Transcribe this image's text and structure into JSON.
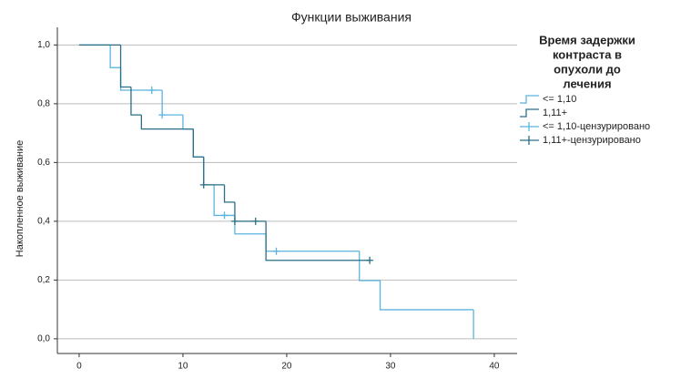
{
  "chart_data": {
    "type": "step",
    "title": "Функции выживания",
    "ylabel": "Накопленное выживание",
    "legend_title": [
      "Время задержки",
      "контраста  в",
      "опухоли до",
      "лечения"
    ],
    "xlim": [
      -2.1,
      42.2
    ],
    "ylim": [
      -0.05,
      1.06
    ],
    "xticks": [
      0,
      10,
      20,
      30,
      40
    ],
    "yticks": [
      {
        "value": 0,
        "label": "0,0"
      },
      {
        "value": 0.2,
        "label": "0,2"
      },
      {
        "value": 0.4,
        "label": "0,4"
      },
      {
        "value": 0.6,
        "label": "0,6"
      },
      {
        "value": 0.8,
        "label": "0,8"
      },
      {
        "value": 1,
        "label": "1,0"
      }
    ],
    "grid": true,
    "series": [
      {
        "name": "<= 1,10",
        "color": "#5ab4e0",
        "x": [
          0,
          3,
          4,
          8,
          10,
          11,
          12,
          13,
          15,
          18,
          27,
          29,
          38
        ],
        "values": [
          1,
          0.923,
          0.846,
          0.762,
          0.714,
          0.619,
          0.524,
          0.42,
          0.357,
          0.298,
          0.198,
          0.099,
          0
        ]
      },
      {
        "name": "1,11+",
        "color": "#2a6f86",
        "x": [
          0,
          4,
          5,
          6,
          11,
          12,
          14,
          15,
          18
        ],
        "values": [
          1,
          0.857,
          0.762,
          0.714,
          0.619,
          0.524,
          0.465,
          0.4,
          0.267
        ]
      }
    ],
    "censored": [
      {
        "name": "<= 1,10-цензурировано",
        "color": "#5ab4e0",
        "x": [
          7,
          8,
          14,
          19
        ],
        "values": [
          0.846,
          0.762,
          0.42,
          0.298
        ]
      },
      {
        "name": "1,11+-цензурировано",
        "color": "#2a6f86",
        "x": [
          12,
          15,
          17,
          28
        ],
        "values": [
          0.524,
          0.4,
          0.4,
          0.267
        ]
      }
    ]
  }
}
